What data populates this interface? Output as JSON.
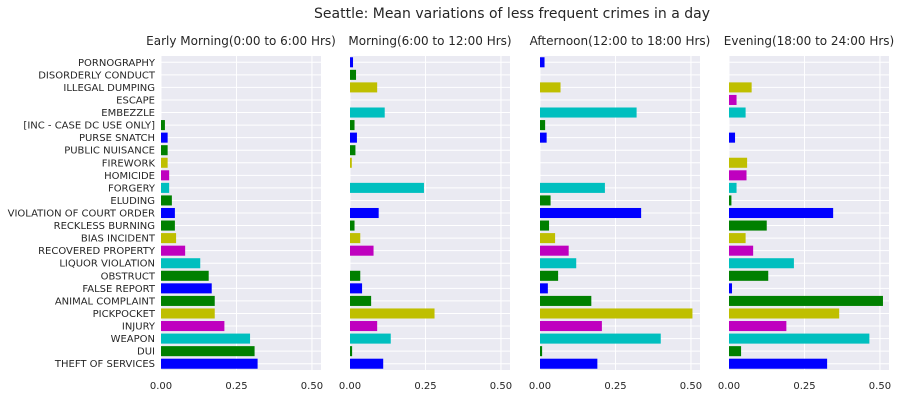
{
  "figure": {
    "title": "Seattle: Mean variations of less frequent crimes in a day"
  },
  "chart_data": {
    "type": "bar",
    "orientation": "horizontal",
    "title": "Seattle: Mean variations of less frequent crimes in a day",
    "categories": [
      "PORNOGRAPHY",
      "DISORDERLY CONDUCT",
      "ILLEGAL DUMPING",
      "ESCAPE",
      "EMBEZZLE",
      "[INC - CASE DC USE ONLY]",
      "PURSE SNATCH",
      "PUBLIC NUISANCE",
      "FIREWORK",
      "HOMICIDE",
      "FORGERY",
      "ELUDING",
      "VIOLATION OF COURT ORDER",
      "RECKLESS BURNING",
      "BIAS INCIDENT",
      "RECOVERED PROPERTY",
      "LIQUOR VIOLATION",
      "OBSTRUCT",
      "FALSE REPORT",
      "ANIMAL COMPLAINT",
      "PICKPOCKET",
      "INJURY",
      "WEAPON",
      "DUI",
      "THEFT OF SERVICES"
    ],
    "bar_colors": [
      "#0000ff",
      "#008000",
      "#bfbf00",
      "#bf00bf",
      "#00bfbf",
      "#008000",
      "#0000ff",
      "#008000",
      "#bfbf00",
      "#bf00bf",
      "#00bfbf",
      "#008000",
      "#0000ff",
      "#008000",
      "#bfbf00",
      "#bf00bf",
      "#00bfbf",
      "#008000",
      "#0000ff",
      "#008000",
      "#bfbf00",
      "#bf00bf",
      "#00bfbf",
      "#008000",
      "#0000ff"
    ],
    "xlim": [
      0,
      0.53
    ],
    "xticks": [
      0,
      0.25,
      0.5
    ],
    "xtick_labels": [
      "0.00",
      "0.25",
      "0.50"
    ],
    "grid": true,
    "legend": "none",
    "panels": [
      {
        "title": "Early Morning(0:00 to 6:00 Hrs)",
        "values": [
          0,
          0,
          0,
          0,
          0,
          0.013,
          0.022,
          0.022,
          0.022,
          0.027,
          0.027,
          0.036,
          0.046,
          0.046,
          0.05,
          0.08,
          0.13,
          0.158,
          0.168,
          0.178,
          0.178,
          0.21,
          0.295,
          0.31,
          0.32
        ]
      },
      {
        "title": "Morning(6:00 to 12:00 Hrs)",
        "values": [
          0.01,
          0.02,
          0.09,
          0,
          0.115,
          0.015,
          0.023,
          0.018,
          0.006,
          0,
          0.245,
          0,
          0.095,
          0.015,
          0.034,
          0.078,
          0,
          0.034,
          0.04,
          0.07,
          0.28,
          0.09,
          0.135,
          0.007,
          0.11
        ]
      },
      {
        "title": "Afternoon(12:00 to 18:00 Hrs)",
        "values": [
          0.015,
          0,
          0.068,
          0,
          0.32,
          0.017,
          0.022,
          0,
          0,
          0,
          0.215,
          0.035,
          0.335,
          0.03,
          0.05,
          0.095,
          0.12,
          0.06,
          0.026,
          0.17,
          0.505,
          0.205,
          0.4,
          0.007,
          0.19
        ]
      },
      {
        "title": "Evening(18:00 to 24:00 Hrs)",
        "values": [
          0,
          0,
          0.075,
          0.025,
          0.055,
          0,
          0.02,
          0,
          0.06,
          0.058,
          0.025,
          0.008,
          0.345,
          0.125,
          0.055,
          0.08,
          0.215,
          0.13,
          0.01,
          0.51,
          0.365,
          0.19,
          0.465,
          0.04,
          0.325
        ]
      }
    ]
  }
}
